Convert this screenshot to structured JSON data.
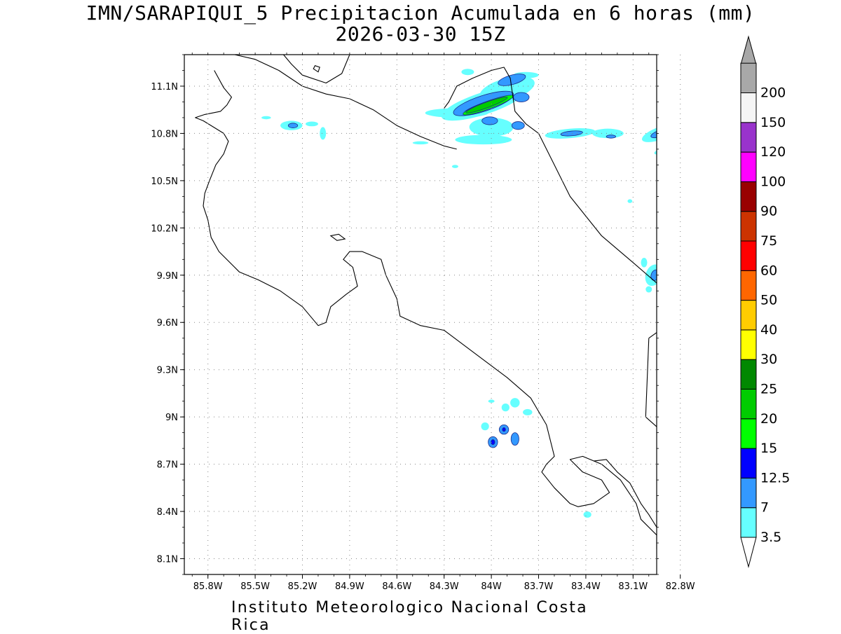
{
  "title": {
    "line1": "IMN/SARAPIQUI_5 Precipitacion Acumulada en 6 horas (mm)",
    "line2": "2026-03-30 15Z"
  },
  "footer": "Instituto Meteorologico Nacional Costa Rica",
  "map": {
    "lon_range": [
      -85.95,
      -82.95
    ],
    "lat_range": [
      8.0,
      11.3
    ],
    "x_ticks": [
      {
        "value": -85.8,
        "label": "85.8W"
      },
      {
        "value": -85.5,
        "label": "85.5W"
      },
      {
        "value": -85.2,
        "label": "85.2W"
      },
      {
        "value": -84.9,
        "label": "84.9W"
      },
      {
        "value": -84.6,
        "label": "84.6W"
      },
      {
        "value": -84.3,
        "label": "84.3W"
      },
      {
        "value": -84.0,
        "label": "84W"
      },
      {
        "value": -83.7,
        "label": "83.7W"
      },
      {
        "value": -83.4,
        "label": "83.4W"
      },
      {
        "value": -83.1,
        "label": "83.1W"
      },
      {
        "value": -82.8,
        "label": "82.8W"
      }
    ],
    "y_ticks": [
      {
        "value": 8.1,
        "label": "8.1N"
      },
      {
        "value": 8.4,
        "label": "8.4N"
      },
      {
        "value": 8.7,
        "label": "8.7N"
      },
      {
        "value": 9.0,
        "label": "9N"
      },
      {
        "value": 9.3,
        "label": "9.3N"
      },
      {
        "value": 9.6,
        "label": "9.6N"
      },
      {
        "value": 9.9,
        "label": "9.9N"
      },
      {
        "value": 10.2,
        "label": "10.2N"
      },
      {
        "value": 10.5,
        "label": "10.5N"
      },
      {
        "value": 10.8,
        "label": "10.8N"
      },
      {
        "value": 11.1,
        "label": "11.1N"
      }
    ],
    "grid": true
  },
  "colorbar": {
    "levels": [
      {
        "label": "3.5",
        "color": "#66ffff"
      },
      {
        "label": "7",
        "color": "#3399ff"
      },
      {
        "label": "12.5",
        "color": "#0000ff"
      },
      {
        "label": "15",
        "color": "#00ff00"
      },
      {
        "label": "20",
        "color": "#00cc00"
      },
      {
        "label": "25",
        "color": "#008800"
      },
      {
        "label": "30",
        "color": "#ffff00"
      },
      {
        "label": "40",
        "color": "#ffcc00"
      },
      {
        "label": "50",
        "color": "#ff6600"
      },
      {
        "label": "60",
        "color": "#ff0000"
      },
      {
        "label": "75",
        "color": "#cc3300"
      },
      {
        "label": "90",
        "color": "#990000"
      },
      {
        "label": "100",
        "color": "#ff00ff"
      },
      {
        "label": "120",
        "color": "#9933cc"
      },
      {
        "label": "150",
        "color": "#f5f5f5"
      },
      {
        "label": "200",
        "color": "#a8a8a8"
      }
    ],
    "bottom_arrow_color": "#ffffff"
  },
  "precip_cells": [
    {
      "lon": -84.22,
      "lat": 10.93,
      "rx_deg": 0.2,
      "ry_deg": 0.03,
      "rot": 0,
      "level": 0
    },
    {
      "lon": -84.05,
      "lat": 10.99,
      "rx_deg": 0.28,
      "ry_deg": 0.07,
      "rot": -18,
      "level": 0
    },
    {
      "lon": -83.9,
      "lat": 11.08,
      "rx_deg": 0.18,
      "ry_deg": 0.07,
      "rot": -15,
      "level": 0
    },
    {
      "lon": -84.0,
      "lat": 10.84,
      "rx_deg": 0.14,
      "ry_deg": 0.06,
      "rot": 0,
      "level": 0
    },
    {
      "lon": -84.05,
      "lat": 10.76,
      "rx_deg": 0.18,
      "ry_deg": 0.03,
      "rot": 0,
      "level": 0
    },
    {
      "lon": -84.15,
      "lat": 11.19,
      "rx_deg": 0.04,
      "ry_deg": 0.02,
      "rot": 0,
      "level": 0
    },
    {
      "lon": -83.78,
      "lat": 11.17,
      "rx_deg": 0.08,
      "ry_deg": 0.02,
      "rot": 0,
      "level": 0
    },
    {
      "lon": -83.5,
      "lat": 10.8,
      "rx_deg": 0.16,
      "ry_deg": 0.03,
      "rot": -5,
      "level": 0
    },
    {
      "lon": -83.26,
      "lat": 10.8,
      "rx_deg": 0.1,
      "ry_deg": 0.03,
      "rot": 0,
      "level": 0
    },
    {
      "lon": -82.93,
      "lat": 10.8,
      "rx_deg": 0.12,
      "ry_deg": 0.04,
      "rot": -20,
      "level": 0
    },
    {
      "lon": -82.89,
      "lat": 10.7,
      "rx_deg": 0.08,
      "ry_deg": 0.02,
      "rot": -20,
      "level": 0
    },
    {
      "lon": -85.27,
      "lat": 10.85,
      "rx_deg": 0.07,
      "ry_deg": 0.03,
      "rot": 0,
      "level": 0
    },
    {
      "lon": -85.14,
      "lat": 10.86,
      "rx_deg": 0.04,
      "ry_deg": 0.015,
      "rot": 0,
      "level": 0
    },
    {
      "lon": -85.07,
      "lat": 10.8,
      "rx_deg": 0.02,
      "ry_deg": 0.04,
      "rot": 0,
      "level": 0
    },
    {
      "lon": -85.43,
      "lat": 10.9,
      "rx_deg": 0.03,
      "ry_deg": 0.01,
      "rot": 0,
      "level": 0
    },
    {
      "lon": -84.45,
      "lat": 10.74,
      "rx_deg": 0.05,
      "ry_deg": 0.01,
      "rot": 0,
      "level": 0
    },
    {
      "lon": -82.97,
      "lat": 9.9,
      "rx_deg": 0.05,
      "ry_deg": 0.07,
      "rot": 20,
      "level": 0
    },
    {
      "lon": -83.03,
      "lat": 9.98,
      "rx_deg": 0.02,
      "ry_deg": 0.03,
      "rot": 0,
      "level": 0
    },
    {
      "lon": -83.0,
      "lat": 9.81,
      "rx_deg": 0.02,
      "ry_deg": 0.02,
      "rot": 0,
      "level": 0
    },
    {
      "lon": -83.12,
      "lat": 10.37,
      "rx_deg": 0.015,
      "ry_deg": 0.012,
      "rot": 0,
      "level": 0
    },
    {
      "lon": -84.23,
      "lat": 10.59,
      "rx_deg": 0.02,
      "ry_deg": 0.01,
      "rot": 0,
      "level": 0
    },
    {
      "lon": -83.85,
      "lat": 9.09,
      "rx_deg": 0.03,
      "ry_deg": 0.03,
      "rot": 0,
      "level": 0
    },
    {
      "lon": -83.77,
      "lat": 9.03,
      "rx_deg": 0.03,
      "ry_deg": 0.02,
      "rot": 0,
      "level": 0
    },
    {
      "lon": -84.0,
      "lat": 9.1,
      "rx_deg": 0.02,
      "ry_deg": 0.01,
      "rot": 0,
      "level": 0
    },
    {
      "lon": -83.91,
      "lat": 9.06,
      "rx_deg": 0.025,
      "ry_deg": 0.025,
      "rot": 0,
      "level": 0
    },
    {
      "lon": -83.39,
      "lat": 8.38,
      "rx_deg": 0.025,
      "ry_deg": 0.02,
      "rot": 0,
      "level": 0
    },
    {
      "lon": -84.04,
      "lat": 8.94,
      "rx_deg": 0.025,
      "ry_deg": 0.025,
      "rot": 0,
      "level": 0
    },
    {
      "lon": -84.05,
      "lat": 10.99,
      "rx_deg": 0.2,
      "ry_deg": 0.05,
      "rot": -18,
      "level": 1
    },
    {
      "lon": -83.87,
      "lat": 11.14,
      "rx_deg": 0.09,
      "ry_deg": 0.03,
      "rot": -15,
      "level": 1
    },
    {
      "lon": -83.81,
      "lat": 11.03,
      "rx_deg": 0.05,
      "ry_deg": 0.03,
      "rot": 0,
      "level": 1
    },
    {
      "lon": -84.01,
      "lat": 10.88,
      "rx_deg": 0.05,
      "ry_deg": 0.025,
      "rot": 0,
      "level": 1
    },
    {
      "lon": -83.83,
      "lat": 10.85,
      "rx_deg": 0.04,
      "ry_deg": 0.025,
      "rot": 0,
      "level": 1
    },
    {
      "lon": -83.49,
      "lat": 10.8,
      "rx_deg": 0.07,
      "ry_deg": 0.015,
      "rot": -5,
      "level": 1
    },
    {
      "lon": -83.24,
      "lat": 10.78,
      "rx_deg": 0.03,
      "ry_deg": 0.01,
      "rot": 0,
      "level": 1
    },
    {
      "lon": -82.93,
      "lat": 10.8,
      "rx_deg": 0.06,
      "ry_deg": 0.02,
      "rot": -20,
      "level": 1
    },
    {
      "lon": -85.26,
      "lat": 10.85,
      "rx_deg": 0.03,
      "ry_deg": 0.015,
      "rot": 0,
      "level": 1
    },
    {
      "lon": -82.96,
      "lat": 9.9,
      "rx_deg": 0.025,
      "ry_deg": 0.035,
      "rot": 20,
      "level": 1
    },
    {
      "lon": -83.92,
      "lat": 8.92,
      "rx_deg": 0.03,
      "ry_deg": 0.03,
      "rot": 0,
      "level": 1
    },
    {
      "lon": -83.99,
      "lat": 8.84,
      "rx_deg": 0.03,
      "ry_deg": 0.035,
      "rot": 0,
      "level": 1
    },
    {
      "lon": -83.85,
      "lat": 8.86,
      "rx_deg": 0.025,
      "ry_deg": 0.04,
      "rot": 0,
      "level": 1
    },
    {
      "lon": -84.06,
      "lat": 10.97,
      "rx_deg": 0.12,
      "ry_deg": 0.02,
      "rot": -20,
      "level": 2
    },
    {
      "lon": -83.99,
      "lat": 8.84,
      "rx_deg": 0.012,
      "ry_deg": 0.016,
      "rot": 0,
      "level": 2
    },
    {
      "lon": -83.92,
      "lat": 8.92,
      "rx_deg": 0.01,
      "ry_deg": 0.012,
      "rot": 0,
      "level": 2
    },
    {
      "lon": -84.02,
      "lat": 10.98,
      "rx_deg": 0.17,
      "ry_deg": 0.025,
      "rot": -20,
      "level": 3
    },
    {
      "lon": -84.03,
      "lat": 10.98,
      "rx_deg": 0.14,
      "ry_deg": 0.018,
      "rot": -20,
      "level": 4
    }
  ],
  "coastlines": [
    [
      [
        -85.76,
        11.2
      ],
      [
        -85.7,
        11.09
      ],
      [
        -85.65,
        11.03
      ],
      [
        -85.68,
        10.98
      ],
      [
        -85.72,
        10.94
      ],
      [
        -85.82,
        10.92
      ],
      [
        -85.88,
        10.9
      ],
      [
        -85.83,
        10.88
      ],
      [
        -85.7,
        10.8
      ],
      [
        -85.67,
        10.75
      ],
      [
        -85.7,
        10.67
      ],
      [
        -85.75,
        10.6
      ],
      [
        -85.79,
        10.5
      ],
      [
        -85.82,
        10.42
      ],
      [
        -85.83,
        10.34
      ],
      [
        -85.8,
        10.25
      ],
      [
        -85.78,
        10.14
      ],
      [
        -85.73,
        10.05
      ],
      [
        -85.6,
        9.92
      ],
      [
        -85.48,
        9.87
      ],
      [
        -85.34,
        9.8
      ],
      [
        -85.2,
        9.7
      ],
      [
        -85.1,
        9.58
      ],
      [
        -85.05,
        9.6
      ],
      [
        -85.02,
        9.7
      ],
      [
        -84.92,
        9.78
      ],
      [
        -84.85,
        9.83
      ],
      [
        -84.88,
        9.95
      ],
      [
        -84.94,
        10.0
      ],
      [
        -84.9,
        10.05
      ],
      [
        -84.82,
        10.05
      ],
      [
        -84.7,
        10.0
      ],
      [
        -84.67,
        9.9
      ],
      [
        -84.6,
        9.75
      ],
      [
        -84.58,
        9.64
      ],
      [
        -84.45,
        9.58
      ],
      [
        -84.3,
        9.55
      ],
      [
        -84.1,
        9.4
      ],
      [
        -83.9,
        9.25
      ],
      [
        -83.75,
        9.12
      ],
      [
        -83.65,
        8.95
      ],
      [
        -83.6,
        8.75
      ],
      [
        -83.65,
        8.7
      ],
      [
        -83.68,
        8.65
      ],
      [
        -83.6,
        8.55
      ],
      [
        -83.5,
        8.45
      ],
      [
        -83.45,
        8.43
      ],
      [
        -83.35,
        8.45
      ],
      [
        -83.25,
        8.52
      ],
      [
        -83.3,
        8.6
      ],
      [
        -83.42,
        8.65
      ],
      [
        -83.5,
        8.73
      ],
      [
        -83.42,
        8.75
      ],
      [
        -83.3,
        8.7
      ],
      [
        -83.18,
        8.6
      ],
      [
        -83.08,
        8.45
      ],
      [
        -83.05,
        8.35
      ],
      [
        -82.95,
        8.25
      ],
      [
        -82.95,
        8.16
      ],
      [
        -82.9,
        8.1
      ],
      [
        -82.91,
        8.04
      ]
    ],
    [
      [
        -84.3,
        10.96
      ],
      [
        -84.27,
        11.0
      ],
      [
        -84.22,
        11.1
      ],
      [
        -84.12,
        11.15
      ],
      [
        -84.0,
        11.2
      ],
      [
        -83.92,
        11.22
      ],
      [
        -83.88,
        11.15
      ],
      [
        -83.85,
        10.94
      ],
      [
        -83.78,
        10.86
      ],
      [
        -83.7,
        10.8
      ],
      [
        -83.6,
        10.6
      ],
      [
        -83.5,
        10.4
      ],
      [
        -83.3,
        10.15
      ],
      [
        -83.1,
        9.98
      ],
      [
        -82.95,
        9.85
      ],
      [
        -82.8,
        9.72
      ],
      [
        -82.7,
        9.6
      ],
      [
        -82.62,
        9.52
      ],
      [
        -82.55,
        9.55
      ]
    ],
    [
      [
        -84.22,
        10.7
      ],
      [
        -84.3,
        10.72
      ],
      [
        -84.45,
        10.78
      ],
      [
        -84.6,
        10.85
      ],
      [
        -84.75,
        10.95
      ],
      [
        -84.9,
        11.02
      ],
      [
        -85.05,
        11.05
      ],
      [
        -85.2,
        11.1
      ],
      [
        -85.35,
        11.2
      ],
      [
        -85.5,
        11.27
      ],
      [
        -85.63,
        11.3
      ]
    ],
    [
      [
        -85.32,
        11.3
      ],
      [
        -85.27,
        11.24
      ],
      [
        -85.2,
        11.17
      ],
      [
        -85.05,
        11.12
      ],
      [
        -84.95,
        11.18
      ],
      [
        -84.9,
        11.3
      ]
    ],
    [
      [
        -83.35,
        8.72
      ],
      [
        -83.27,
        8.73
      ],
      [
        -83.2,
        8.65
      ],
      [
        -83.12,
        8.58
      ],
      [
        -83.05,
        8.45
      ],
      [
        -83.0,
        8.38
      ],
      [
        -82.95,
        8.3
      ],
      [
        -82.88,
        8.2
      ],
      [
        -82.8,
        8.1
      ],
      [
        -82.7,
        8.02
      ]
    ],
    [
      [
        -83.0,
        9.5
      ],
      [
        -82.93,
        9.55
      ],
      [
        -82.86,
        9.6
      ],
      [
        -82.77,
        9.58
      ],
      [
        -82.72,
        9.6
      ],
      [
        -82.66,
        9.55
      ]
    ],
    [
      [
        -83.0,
        9.5
      ],
      [
        -83.02,
        9.0
      ],
      [
        -82.93,
        8.92
      ],
      [
        -82.9,
        8.7
      ]
    ]
  ],
  "islands": [
    [
      [
        -85.13,
        11.21
      ],
      [
        -85.1,
        11.19
      ],
      [
        -85.09,
        11.22
      ],
      [
        -85.12,
        11.23
      ]
    ],
    [
      [
        -85.02,
        10.15
      ],
      [
        -84.98,
        10.12
      ],
      [
        -84.93,
        10.13
      ],
      [
        -84.97,
        10.16
      ]
    ]
  ]
}
